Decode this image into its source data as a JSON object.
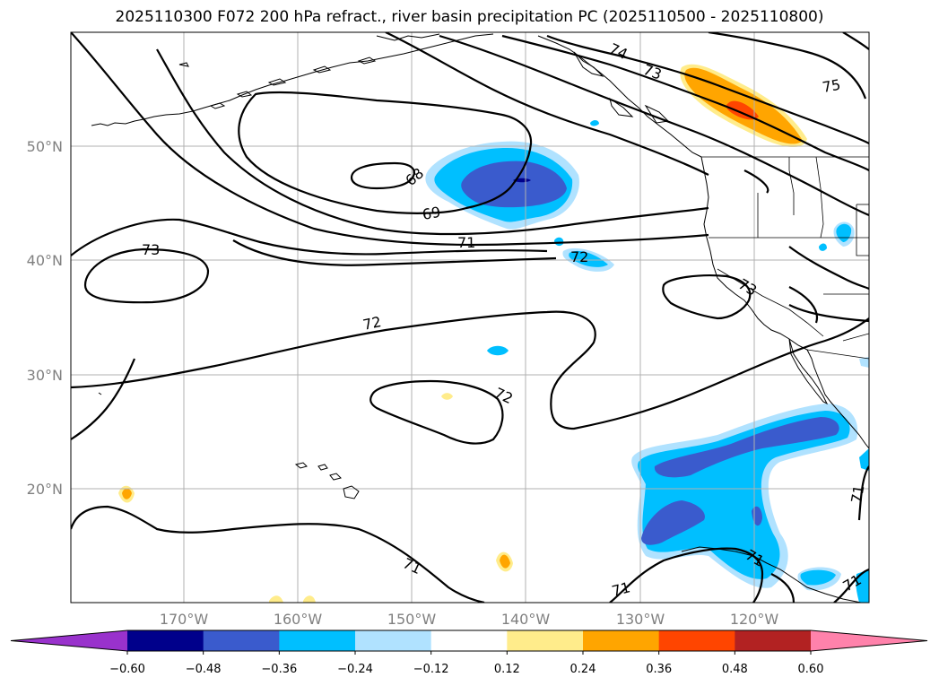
{
  "title": "2025110300 F072 200 hPa refract., river basin precipitation PC (2025110500 - 2025110800)",
  "axes": {
    "lat_labels": [
      "50°N",
      "40°N",
      "30°N",
      "20°N"
    ],
    "lon_labels": [
      "170°W",
      "160°W",
      "150°W",
      "140°W",
      "130°W",
      "120°W"
    ]
  },
  "contour_labels": [
    "74",
    "73",
    "75",
    "68",
    "69",
    "71",
    "72",
    "73",
    "73",
    "72",
    "72",
    "71",
    "71",
    "71",
    "71",
    "71"
  ],
  "colorbar": {
    "colors": [
      "#9932cc",
      "#00008b",
      "#3a5bcd",
      "#00bfff",
      "#b0e2ff",
      "#ffffff",
      "#ffec8b",
      "#ffa500",
      "#ff4500",
      "#b22222",
      "#ff82ab"
    ],
    "ticks": [
      "−0.60",
      "−0.48",
      "−0.36",
      "−0.24",
      "−0.12",
      "0.12",
      "0.24",
      "0.36",
      "0.48",
      "0.60"
    ]
  }
}
